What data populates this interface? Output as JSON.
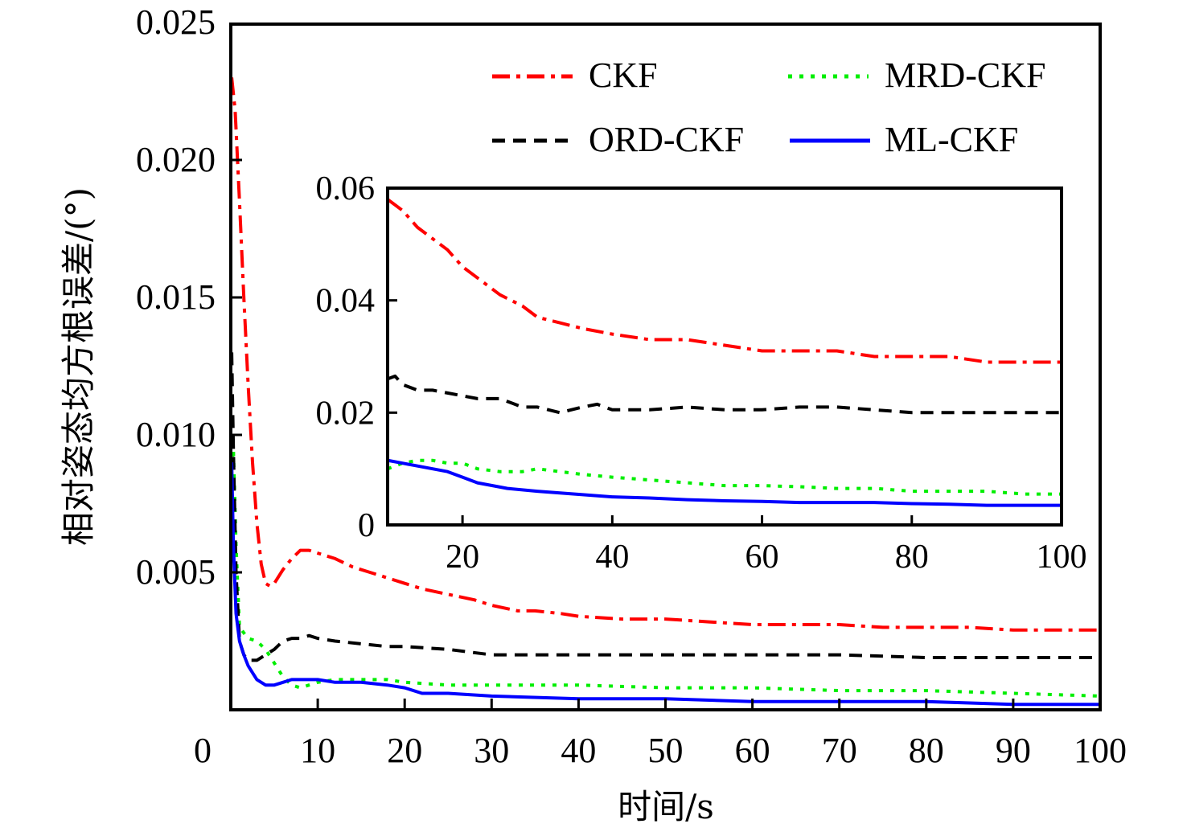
{
  "chart_data": [
    {
      "id": "main",
      "type": "line",
      "title": "",
      "xlabel": "时间/s",
      "ylabel": "相对姿态均方根误差/(°)",
      "xlim": [
        0,
        100
      ],
      "ylim": [
        0,
        0.025
      ],
      "grid": false,
      "legend_position": "top-right",
      "xticks": [
        0,
        10,
        20,
        30,
        40,
        50,
        60,
        70,
        80,
        90,
        100
      ],
      "xtick_labels": [
        "0",
        "10",
        "20",
        "30",
        "40",
        "50",
        "60",
        "70",
        "80",
        "90",
        "100"
      ],
      "yticks": [
        0.005,
        0.01,
        0.015,
        0.02,
        0.025
      ],
      "ytick_labels": [
        "0.005",
        "0.010",
        "0.015",
        "0.020",
        "0.025"
      ],
      "series": [
        {
          "name": "CKF",
          "color": "#ff0000",
          "style": "dashdot",
          "x": [
            0.1,
            0.5,
            1,
            1.5,
            2,
            2.5,
            3,
            3.5,
            4,
            4.5,
            5,
            6,
            7,
            8,
            9,
            10,
            12,
            14,
            16,
            18,
            20,
            22,
            25,
            28,
            30,
            33,
            35,
            38,
            40,
            45,
            50,
            55,
            60,
            65,
            70,
            75,
            80,
            85,
            90,
            95,
            100
          ],
          "y": [
            0.023,
            0.0218,
            0.0185,
            0.015,
            0.0118,
            0.009,
            0.0068,
            0.0053,
            0.0046,
            0.0045,
            0.0046,
            0.0051,
            0.0055,
            0.0058,
            0.0058,
            0.0057,
            0.0055,
            0.0052,
            0.005,
            0.0048,
            0.0046,
            0.0044,
            0.0042,
            0.004,
            0.0038,
            0.0036,
            0.0036,
            0.0035,
            0.0034,
            0.0033,
            0.0033,
            0.0032,
            0.0031,
            0.0031,
            0.0031,
            0.003,
            0.003,
            0.003,
            0.0029,
            0.0029,
            0.0029
          ]
        },
        {
          "name": "MRD-CKF",
          "color": "#00ee00",
          "style": "dotted",
          "x": [
            0.1,
            0.3,
            0.6,
            1,
            2,
            3,
            4,
            5,
            6,
            7,
            8,
            10,
            12,
            15,
            18,
            20,
            25,
            30,
            40,
            50,
            60,
            70,
            80,
            90,
            100
          ],
          "y": [
            0.0088,
            0.0095,
            0.006,
            0.003,
            0.0026,
            0.0025,
            0.0022,
            0.0017,
            0.0012,
            0.0009,
            0.0008,
            0.001,
            0.0011,
            0.0011,
            0.0011,
            0.001,
            0.0009,
            0.0009,
            0.0009,
            0.0008,
            0.0008,
            0.0007,
            0.0007,
            0.0006,
            0.0005
          ]
        },
        {
          "name": "ORD-CKF",
          "color": "#000000",
          "style": "dashed",
          "x": [
            0.1,
            0.3,
            0.6,
            1,
            1.5,
            2,
            3,
            4,
            5,
            6,
            7,
            8,
            9,
            10,
            12,
            15,
            18,
            20,
            25,
            30,
            35,
            40,
            50,
            60,
            70,
            80,
            90,
            100
          ],
          "y": [
            0.013,
            0.0095,
            0.005,
            0.0025,
            0.002,
            0.0018,
            0.0018,
            0.002,
            0.0022,
            0.0025,
            0.0026,
            0.0026,
            0.0027,
            0.0026,
            0.0025,
            0.0024,
            0.0023,
            0.0023,
            0.0022,
            0.002,
            0.002,
            0.002,
            0.002,
            0.002,
            0.002,
            0.0019,
            0.0019,
            0.0019
          ]
        },
        {
          "name": "ML-CKF",
          "color": "#0000ff",
          "style": "solid",
          "x": [
            0.1,
            0.3,
            0.6,
            1,
            1.5,
            2,
            3,
            4,
            5,
            6,
            7,
            8,
            9,
            10,
            12,
            15,
            18,
            20,
            22,
            25,
            30,
            40,
            50,
            60,
            70,
            80,
            90,
            100
          ],
          "y": [
            0.009,
            0.006,
            0.0035,
            0.0025,
            0.002,
            0.0016,
            0.0011,
            0.0009,
            0.0009,
            0.001,
            0.0011,
            0.0011,
            0.0011,
            0.0011,
            0.001,
            0.001,
            0.0009,
            0.0008,
            0.0006,
            0.0006,
            0.0005,
            0.0004,
            0.0004,
            0.0003,
            0.0003,
            0.0003,
            0.0002,
            0.0002
          ]
        }
      ]
    },
    {
      "id": "inset",
      "type": "line",
      "title": "",
      "xlabel": "",
      "ylabel": "",
      "xlim": [
        10,
        100
      ],
      "ylim": [
        0,
        0.06
      ],
      "grid": false,
      "xticks": [
        20,
        40,
        60,
        80,
        100
      ],
      "xtick_labels": [
        "20",
        "40",
        "60",
        "80",
        "100"
      ],
      "yticks": [
        0,
        0.02,
        0.04,
        0.06
      ],
      "ytick_labels": [
        "0",
        "0.02",
        "0.04",
        "0.06"
      ],
      "series": [
        {
          "name": "CKF",
          "color": "#ff0000",
          "style": "dashdot",
          "x": [
            10,
            12,
            14,
            16,
            18,
            20,
            22,
            25,
            28,
            30,
            33,
            36,
            40,
            45,
            50,
            55,
            60,
            65,
            70,
            75,
            80,
            85,
            90,
            95,
            100
          ],
          "y": [
            0.058,
            0.056,
            0.053,
            0.051,
            0.049,
            0.046,
            0.044,
            0.041,
            0.039,
            0.037,
            0.036,
            0.035,
            0.034,
            0.033,
            0.033,
            0.032,
            0.031,
            0.031,
            0.031,
            0.03,
            0.03,
            0.03,
            0.029,
            0.029,
            0.029
          ]
        },
        {
          "name": "ORD-CKF",
          "color": "#000000",
          "style": "dashed",
          "x": [
            10,
            11,
            12,
            14,
            16,
            18,
            20,
            22,
            25,
            28,
            30,
            33,
            36,
            38,
            40,
            45,
            50,
            55,
            60,
            65,
            70,
            75,
            80,
            85,
            90,
            95,
            100
          ],
          "y": [
            0.026,
            0.0265,
            0.025,
            0.024,
            0.024,
            0.0235,
            0.023,
            0.0225,
            0.0225,
            0.021,
            0.021,
            0.02,
            0.021,
            0.0215,
            0.0205,
            0.0205,
            0.021,
            0.0205,
            0.0205,
            0.021,
            0.021,
            0.0205,
            0.02,
            0.02,
            0.02,
            0.02,
            0.02
          ]
        },
        {
          "name": "MRD-CKF",
          "color": "#00ee00",
          "style": "dotted",
          "x": [
            10,
            12,
            14,
            16,
            18,
            20,
            22,
            25,
            28,
            30,
            33,
            36,
            40,
            45,
            50,
            55,
            60,
            65,
            70,
            75,
            80,
            85,
            90,
            95,
            100
          ],
          "y": [
            0.01,
            0.011,
            0.0115,
            0.0115,
            0.011,
            0.011,
            0.01,
            0.0095,
            0.0095,
            0.01,
            0.0095,
            0.009,
            0.0085,
            0.008,
            0.0075,
            0.007,
            0.007,
            0.0068,
            0.0065,
            0.0065,
            0.006,
            0.006,
            0.006,
            0.0055,
            0.0055
          ]
        },
        {
          "name": "ML-CKF",
          "color": "#0000ff",
          "style": "solid",
          "x": [
            10,
            12,
            14,
            16,
            18,
            20,
            22,
            24,
            26,
            30,
            35,
            40,
            45,
            50,
            55,
            60,
            65,
            70,
            75,
            80,
            85,
            90,
            95,
            100
          ],
          "y": [
            0.0115,
            0.011,
            0.0105,
            0.01,
            0.0095,
            0.0085,
            0.0075,
            0.007,
            0.0065,
            0.006,
            0.0055,
            0.005,
            0.0048,
            0.0045,
            0.0043,
            0.0042,
            0.004,
            0.004,
            0.004,
            0.0038,
            0.0037,
            0.0035,
            0.0035,
            0.0035
          ]
        }
      ]
    }
  ],
  "legend": {
    "items": [
      {
        "label": "CKF",
        "color": "#ff0000",
        "style": "dashdot"
      },
      {
        "label": "MRD-CKF",
        "color": "#00ee00",
        "style": "dotted"
      },
      {
        "label": "ORD-CKF",
        "color": "#000000",
        "style": "dashed"
      },
      {
        "label": "ML-CKF",
        "color": "#0000ff",
        "style": "solid"
      }
    ]
  }
}
